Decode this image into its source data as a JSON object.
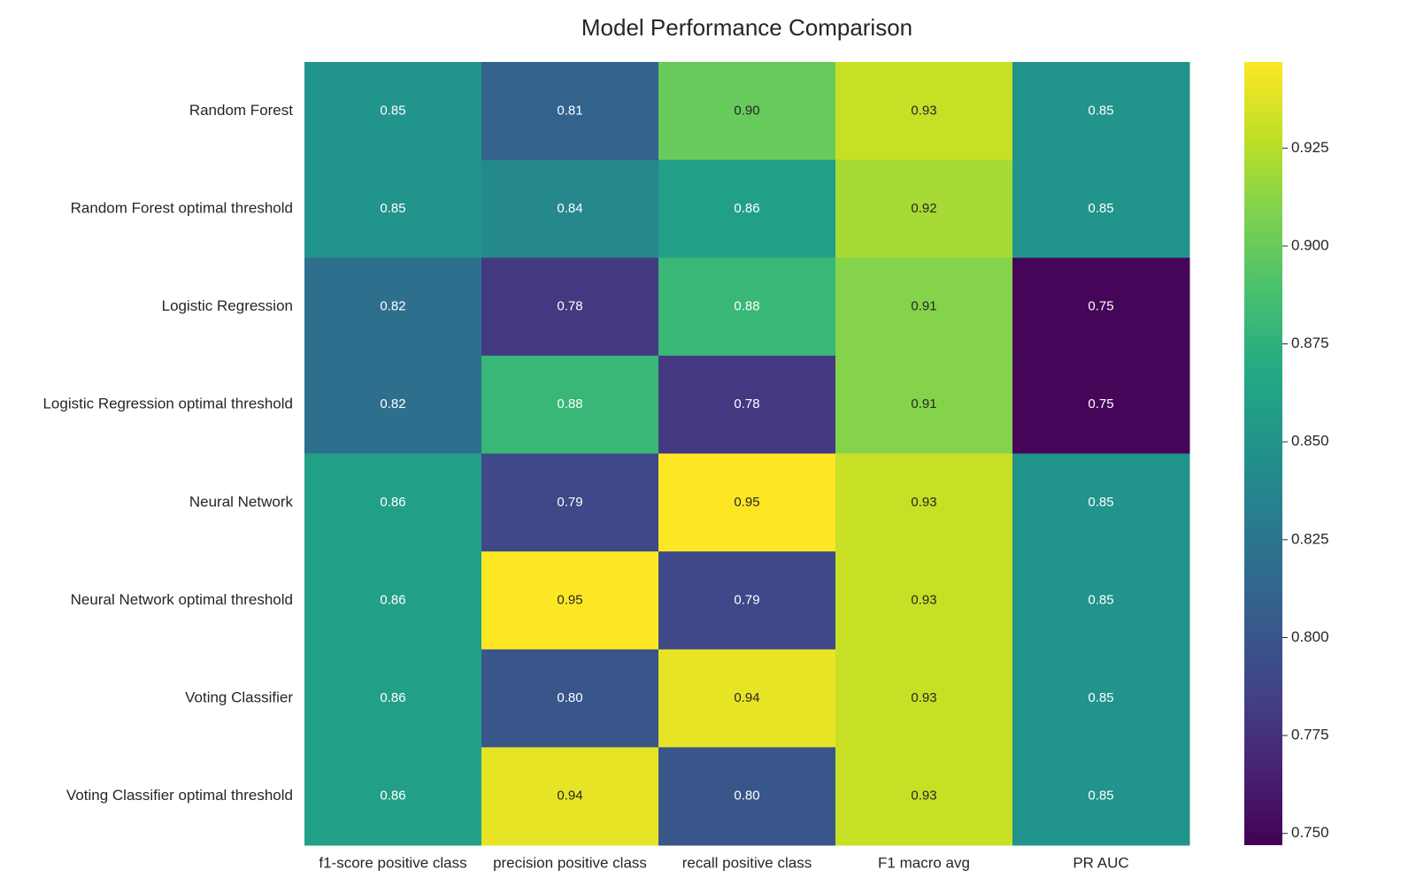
{
  "chart_data": {
    "type": "heatmap",
    "title": "Model Performance Comparison",
    "x": [
      "f1-score positive class",
      "precision positive class",
      "recall positive class",
      "F1 macro avg",
      "PR AUC"
    ],
    "y": [
      "Random Forest",
      "Random Forest optimal threshold",
      "Logistic Regression",
      "Logistic Regression optimal threshold",
      "Neural Network",
      "Neural Network optimal threshold",
      "Voting Classifier",
      "Voting Classifier optimal threshold"
    ],
    "values": [
      [
        0.85,
        0.81,
        0.9,
        0.93,
        0.85
      ],
      [
        0.85,
        0.84,
        0.86,
        0.92,
        0.85
      ],
      [
        0.82,
        0.78,
        0.88,
        0.91,
        0.75
      ],
      [
        0.82,
        0.88,
        0.78,
        0.91,
        0.75
      ],
      [
        0.86,
        0.79,
        0.95,
        0.93,
        0.85
      ],
      [
        0.86,
        0.95,
        0.79,
        0.93,
        0.85
      ],
      [
        0.86,
        0.8,
        0.94,
        0.93,
        0.85
      ],
      [
        0.86,
        0.94,
        0.8,
        0.93,
        0.85
      ]
    ],
    "value_labels": [
      [
        "0.85",
        "0.81",
        "0.90",
        "0.93",
        "0.85"
      ],
      [
        "0.85",
        "0.84",
        "0.86",
        "0.92",
        "0.85"
      ],
      [
        "0.82",
        "0.78",
        "0.88",
        "0.91",
        "0.75"
      ],
      [
        "0.82",
        "0.88",
        "0.78",
        "0.91",
        "0.75"
      ],
      [
        "0.86",
        "0.79",
        "0.95",
        "0.93",
        "0.85"
      ],
      [
        "0.86",
        "0.95",
        "0.79",
        "0.93",
        "0.85"
      ],
      [
        "0.86",
        "0.80",
        "0.94",
        "0.93",
        "0.85"
      ],
      [
        "0.86",
        "0.94",
        "0.80",
        "0.93",
        "0.85"
      ]
    ],
    "colormap": "viridis",
    "clim": [
      0.747,
      0.947
    ],
    "cticks": [
      {
        "value": 0.75,
        "label": "0.750"
      },
      {
        "value": 0.775,
        "label": "0.775"
      },
      {
        "value": 0.8,
        "label": "0.800"
      },
      {
        "value": 0.825,
        "label": "0.825"
      },
      {
        "value": 0.85,
        "label": "0.850"
      },
      {
        "value": 0.875,
        "label": "0.875"
      },
      {
        "value": 0.9,
        "label": "0.900"
      },
      {
        "value": 0.925,
        "label": "0.925"
      }
    ]
  }
}
